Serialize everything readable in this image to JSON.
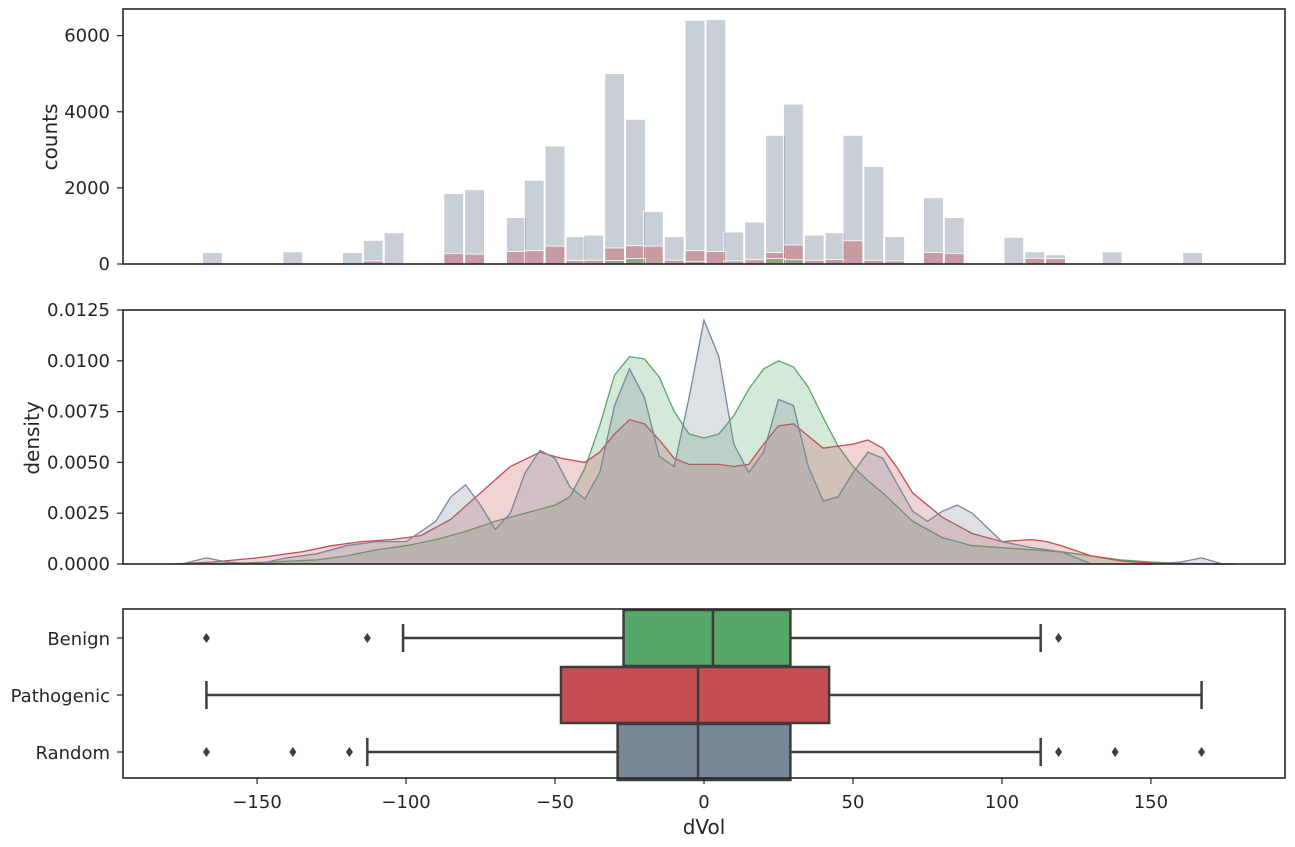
{
  "chart_data": [
    {
      "type": "bar",
      "subtype": "histogram",
      "ylabel": "counts",
      "xlabel": "",
      "xlim": [
        -195,
        195
      ],
      "ylim": [
        0,
        6700
      ],
      "yticks": [
        0,
        2000,
        4000,
        6000
      ],
      "grid": false,
      "colors": {
        "Random": "#778899",
        "Pathogenic": "#c44e52",
        "Benign": "#55a868"
      },
      "bin_width": 6.6,
      "series": [
        {
          "key": "Random",
          "color": "#778899",
          "bins": [
            {
              "x": -165,
              "count": 300
            },
            {
              "x": -138,
              "count": 320
            },
            {
              "x": -118,
              "count": 300
            },
            {
              "x": -111,
              "count": 620
            },
            {
              "x": -104,
              "count": 820
            },
            {
              "x": -84,
              "count": 1850
            },
            {
              "x": -77,
              "count": 1950
            },
            {
              "x": -63,
              "count": 1220
            },
            {
              "x": -57,
              "count": 2200
            },
            {
              "x": -50,
              "count": 3100
            },
            {
              "x": -43,
              "count": 720
            },
            {
              "x": -37,
              "count": 760
            },
            {
              "x": -30,
              "count": 5000
            },
            {
              "x": -23,
              "count": 3800
            },
            {
              "x": -17,
              "count": 1380
            },
            {
              "x": -10,
              "count": 720
            },
            {
              "x": -3,
              "count": 6400
            },
            {
              "x": 4,
              "count": 6420
            },
            {
              "x": 10,
              "count": 840
            },
            {
              "x": 17,
              "count": 1100
            },
            {
              "x": 24,
              "count": 3380
            },
            {
              "x": 30,
              "count": 4200
            },
            {
              "x": 37,
              "count": 760
            },
            {
              "x": 44,
              "count": 820
            },
            {
              "x": 50,
              "count": 3380
            },
            {
              "x": 57,
              "count": 2560
            },
            {
              "x": 64,
              "count": 720
            },
            {
              "x": 77,
              "count": 1740
            },
            {
              "x": 84,
              "count": 1220
            },
            {
              "x": 104,
              "count": 700
            },
            {
              "x": 111,
              "count": 320
            },
            {
              "x": 118,
              "count": 240
            },
            {
              "x": 137,
              "count": 320
            },
            {
              "x": 164,
              "count": 300
            }
          ]
        },
        {
          "key": "Pathogenic",
          "color": "#c44e52",
          "bins": [
            {
              "x": -111,
              "count": 80
            },
            {
              "x": -84,
              "count": 280
            },
            {
              "x": -77,
              "count": 260
            },
            {
              "x": -63,
              "count": 330
            },
            {
              "x": -57,
              "count": 350
            },
            {
              "x": -50,
              "count": 470
            },
            {
              "x": -43,
              "count": 90
            },
            {
              "x": -37,
              "count": 100
            },
            {
              "x": -30,
              "count": 420
            },
            {
              "x": -23,
              "count": 480
            },
            {
              "x": -17,
              "count": 470
            },
            {
              "x": -10,
              "count": 100
            },
            {
              "x": -3,
              "count": 350
            },
            {
              "x": 4,
              "count": 330
            },
            {
              "x": 10,
              "count": 80
            },
            {
              "x": 17,
              "count": 110
            },
            {
              "x": 24,
              "count": 300
            },
            {
              "x": 30,
              "count": 500
            },
            {
              "x": 37,
              "count": 100
            },
            {
              "x": 44,
              "count": 120
            },
            {
              "x": 50,
              "count": 610
            },
            {
              "x": 57,
              "count": 100
            },
            {
              "x": 64,
              "count": 80
            },
            {
              "x": 77,
              "count": 300
            },
            {
              "x": 84,
              "count": 280
            },
            {
              "x": 111,
              "count": 150
            },
            {
              "x": 118,
              "count": 140
            }
          ]
        },
        {
          "key": "Benign",
          "color": "#55a868",
          "bins": [
            {
              "x": -30,
              "count": 90
            },
            {
              "x": -23,
              "count": 140
            },
            {
              "x": -3,
              "count": 60
            },
            {
              "x": 24,
              "count": 140
            },
            {
              "x": 30,
              "count": 110
            }
          ]
        }
      ]
    },
    {
      "type": "area",
      "subtype": "kde",
      "ylabel": "density",
      "xlabel": "",
      "xlim": [
        -195,
        195
      ],
      "ylim": [
        0,
        0.0125
      ],
      "yticks": [
        "0.0000",
        "0.0025",
        "0.0050",
        "0.0075",
        "0.0100",
        "0.0125"
      ],
      "grid": false,
      "series": [
        {
          "key": "Benign",
          "color": "#55a868",
          "x": [
            -175,
            -160,
            -145,
            -130,
            -120,
            -110,
            -100,
            -90,
            -80,
            -70,
            -60,
            -50,
            -45,
            -40,
            -35,
            -30,
            -25,
            -20,
            -15,
            -10,
            -5,
            0,
            5,
            10,
            15,
            20,
            25,
            30,
            35,
            40,
            45,
            50,
            55,
            60,
            65,
            70,
            80,
            90,
            100,
            110,
            120,
            130,
            140,
            150,
            160,
            170,
            178
          ],
          "y": [
            0.0,
            3e-05,
            0.0001,
            0.0002,
            0.0004,
            0.0007,
            0.0009,
            0.0012,
            0.0016,
            0.0021,
            0.0025,
            0.0029,
            0.0033,
            0.0047,
            0.0068,
            0.0093,
            0.0102,
            0.0101,
            0.0092,
            0.0075,
            0.0064,
            0.0062,
            0.0064,
            0.0073,
            0.0086,
            0.0096,
            0.01,
            0.0097,
            0.0087,
            0.0072,
            0.0058,
            0.0048,
            0.0041,
            0.0035,
            0.0028,
            0.0021,
            0.0013,
            0.0009,
            0.0008,
            0.0007,
            0.0006,
            0.0004,
            0.0002,
            0.0001,
            3e-05,
            0.0,
            0.0
          ]
        },
        {
          "key": "Pathogenic",
          "color": "#c44e52",
          "x": [
            -178,
            -165,
            -150,
            -135,
            -125,
            -115,
            -105,
            -95,
            -85,
            -75,
            -65,
            -55,
            -48,
            -40,
            -35,
            -30,
            -25,
            -20,
            -15,
            -10,
            -5,
            0,
            5,
            10,
            15,
            20,
            25,
            30,
            35,
            40,
            45,
            50,
            55,
            60,
            65,
            70,
            80,
            90,
            100,
            110,
            115,
            120,
            130,
            140,
            150,
            160,
            170,
            178
          ],
          "y": [
            0.0,
            0.0001,
            0.0003,
            0.0006,
            0.0009,
            0.0011,
            0.0012,
            0.0014,
            0.0022,
            0.0035,
            0.0048,
            0.0055,
            0.0052,
            0.005,
            0.0055,
            0.0064,
            0.0071,
            0.0069,
            0.0061,
            0.0052,
            0.0049,
            0.0049,
            0.0049,
            0.0048,
            0.0049,
            0.0059,
            0.0068,
            0.0069,
            0.0063,
            0.0057,
            0.0058,
            0.0059,
            0.0061,
            0.0057,
            0.0047,
            0.0035,
            0.0023,
            0.0015,
            0.0011,
            0.0012,
            0.0011,
            0.0009,
            0.0004,
            0.00015,
            5e-05,
            2e-05,
            0.0,
            0.0
          ]
        },
        {
          "key": "Random",
          "color": "#778899",
          "x": [
            -174,
            -167,
            -160,
            -150,
            -140,
            -130,
            -120,
            -110,
            -100,
            -90,
            -85,
            -80,
            -75,
            -70,
            -65,
            -60,
            -55,
            -50,
            -45,
            -40,
            -35,
            -30,
            -25,
            -20,
            -15,
            -10,
            -5,
            0,
            5,
            10,
            15,
            20,
            25,
            30,
            35,
            40,
            45,
            50,
            55,
            60,
            65,
            70,
            75,
            80,
            85,
            90,
            100,
            110,
            120,
            130,
            140,
            150,
            160,
            167,
            174
          ],
          "y": [
            5e-05,
            0.0003,
            0.0001,
            0.0,
            0.0003,
            0.0005,
            0.0009,
            0.0011,
            0.0011,
            0.0021,
            0.0033,
            0.0039,
            0.0029,
            0.0017,
            0.0025,
            0.0045,
            0.0056,
            0.0052,
            0.0038,
            0.0032,
            0.0045,
            0.0078,
            0.0096,
            0.0082,
            0.0053,
            0.0048,
            0.0082,
            0.012,
            0.0102,
            0.0059,
            0.0045,
            0.0055,
            0.0081,
            0.0078,
            0.0048,
            0.0031,
            0.0033,
            0.0045,
            0.0055,
            0.0052,
            0.0039,
            0.0026,
            0.0021,
            0.0026,
            0.0029,
            0.0025,
            0.0011,
            0.0008,
            0.0006,
            0.0,
            0.0,
            0.0,
            0.0001,
            0.0003,
            0.0
          ]
        }
      ]
    },
    {
      "type": "box",
      "xlabel": "dVol",
      "ylabel": "",
      "xlim": [
        -195,
        195
      ],
      "xticks": [
        "−150",
        "−100",
        "−50",
        "0",
        "50",
        "100",
        "150"
      ],
      "xtick_values": [
        -150,
        -100,
        -50,
        0,
        50,
        100,
        150
      ],
      "categories": [
        "Benign",
        "Pathogenic",
        "Random"
      ],
      "boxes": [
        {
          "label": "Benign",
          "color": "#55a868",
          "whisker_low": -101,
          "q1": -27,
          "median": 3,
          "q3": 29,
          "whisker_high": 113,
          "outliers": [
            -167,
            -113,
            119
          ]
        },
        {
          "label": "Pathogenic",
          "color": "#c44e52",
          "whisker_low": -167,
          "q1": -48,
          "median": -2,
          "q3": 42,
          "whisker_high": 167,
          "outliers": []
        },
        {
          "label": "Random",
          "color": "#778899",
          "whisker_low": -113,
          "q1": -29,
          "median": -2,
          "q3": 29,
          "whisker_high": 113,
          "outliers": [
            -167,
            -138,
            -119,
            119,
            138,
            167
          ]
        }
      ]
    }
  ]
}
